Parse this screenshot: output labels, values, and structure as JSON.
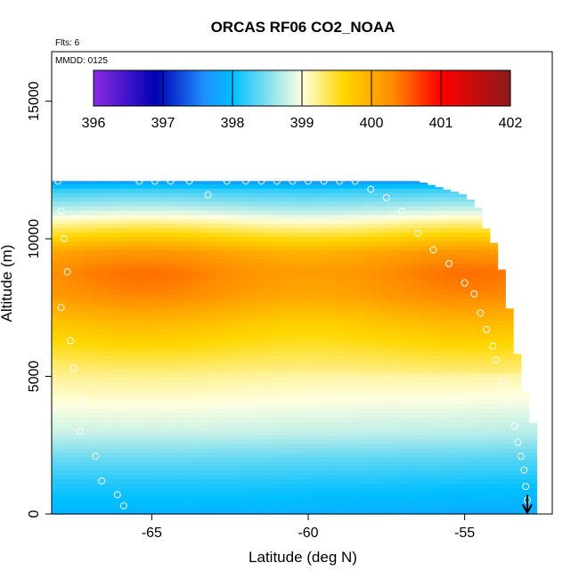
{
  "chart_data": {
    "type": "heatmap",
    "title": "ORCAS RF06 CO2_NOAA",
    "note_flights": "Flts: 6",
    "note_date": "MMDD: 0125",
    "xlabel": "Latitude (deg N)",
    "ylabel": "Altitude (m)",
    "xlim": [
      -68.2,
      -52.2
    ],
    "ylim": [
      0,
      16800
    ],
    "xticks": [
      -65,
      -60,
      -55
    ],
    "xtick_labels": [
      "-65",
      "-60",
      "-55"
    ],
    "yticks": [
      0,
      5000,
      10000,
      15000
    ],
    "ytick_labels": [
      "0",
      "5000",
      "10000",
      "15000"
    ],
    "colorbar": {
      "min": 396,
      "max": 402,
      "ticks": [
        396,
        397,
        398,
        399,
        400,
        401,
        402
      ],
      "tick_labels": [
        "396",
        "397",
        "398",
        "399",
        "400",
        "401",
        "402"
      ],
      "colors": [
        "#8a2be2",
        "#0000b4",
        "#1e90ff",
        "#00bfff",
        "#ffffe0",
        "#ffd700",
        "#ff8c00",
        "#ff0000",
        "#8b1a1a"
      ],
      "color_stops": [
        396,
        396.9,
        397.6,
        398.0,
        399.0,
        399.6,
        400.3,
        401.0,
        402
      ]
    },
    "profile_altitudes": [
      0,
      1000,
      2000,
      3000,
      4000,
      5000,
      6000,
      7000,
      8000,
      8800,
      9500,
      10200,
      11000,
      11800,
      12100
    ],
    "profile_values": [
      397.9,
      398.1,
      398.4,
      398.8,
      399.0,
      399.2,
      399.5,
      399.8,
      400.2,
      400.3,
      400.1,
      399.5,
      398.8,
      398.2,
      397.7
    ],
    "data_extent_latitudes": [
      -68.2,
      -64.5,
      -58.5,
      -56.5,
      -55.0,
      -54.6,
      -54.3,
      -54.0,
      -53.7,
      -53.4,
      -53.2,
      -52.8
    ],
    "data_extent_max_altitudes": [
      12100,
      12100,
      12100,
      12100,
      11600,
      11200,
      10300,
      9700,
      8300,
      6300,
      5000,
      3200
    ],
    "flight_track": {
      "lat": [
        -68.0,
        -67.9,
        -67.8,
        -67.7,
        -67.9,
        -67.6,
        -67.5,
        -67.2,
        -67.3,
        -66.8,
        -66.6,
        -66.1,
        -65.9,
        -65.4,
        -64.9,
        -64.4,
        -63.8,
        -63.2,
        -62.6,
        -62.0,
        -61.5,
        -61.0,
        -60.5,
        -60.0,
        -59.5,
        -59.0,
        -58.5,
        -58.0,
        -57.5,
        -57.0,
        -56.5,
        -56.0,
        -55.5,
        -55.0,
        -54.7,
        -54.5,
        -54.3,
        -54.1,
        -54.0,
        -53.8,
        -53.6,
        -53.4,
        -53.3,
        -53.2,
        -53.1,
        -53.05,
        -53.0
      ],
      "alt": [
        12100,
        11000,
        10000,
        8800,
        7500,
        6300,
        5300,
        4100,
        3000,
        2100,
        1200,
        700,
        300,
        12100,
        12100,
        12100,
        12100,
        11600,
        12100,
        12100,
        12100,
        12100,
        12100,
        12100,
        12100,
        12100,
        12100,
        11800,
        11500,
        11000,
        10200,
        9600,
        9100,
        8400,
        8000,
        7300,
        6700,
        6100,
        5600,
        4800,
        4000,
        3200,
        2600,
        2100,
        1600,
        1000,
        500
      ]
    },
    "arrow": {
      "lat": -53.0,
      "from_alt": 700,
      "to_alt": 50
    }
  }
}
